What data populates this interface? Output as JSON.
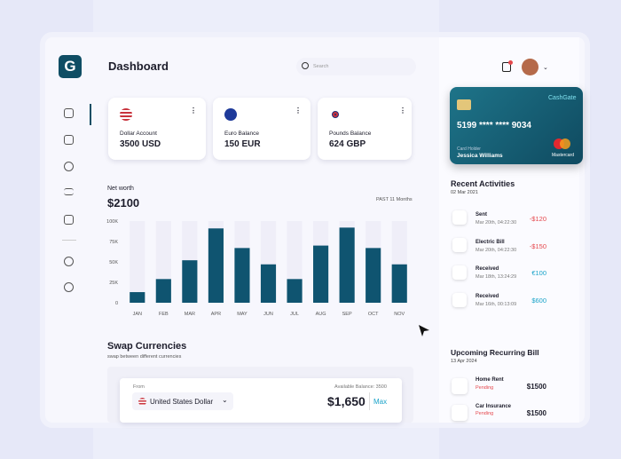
{
  "header": {
    "title": "Dashboard",
    "search_placeholder": "Search"
  },
  "logo": "G",
  "balances": [
    {
      "label": "Dollar Account",
      "amount": "3500 USD"
    },
    {
      "label": "Euro Balance",
      "amount": "150 EUR"
    },
    {
      "label": "Pounds Balance",
      "amount": "624 GBP"
    }
  ],
  "net_worth": {
    "label": "Net worth",
    "amount": "$2100",
    "period": "PAST 11 Months",
    "chart": {
      "type": "bar",
      "categories": [
        "JAN",
        "FEB",
        "MAR",
        "APR",
        "MAY",
        "JUN",
        "JUL",
        "AUG",
        "SEP",
        "OCT",
        "NOV"
      ],
      "values": [
        13000,
        29000,
        52000,
        91000,
        67000,
        47000,
        29000,
        70000,
        92000,
        67000,
        47000
      ],
      "color": "#0f5470",
      "ylim": [
        0,
        100000
      ],
      "yticks": [
        0,
        {
          "value": 25000,
          "label": "25K"
        },
        {
          "value": 50000,
          "label": "50K"
        },
        {
          "value": 75000,
          "label": "75K"
        },
        {
          "value": 100000,
          "label": "100K"
        }
      ]
    }
  },
  "card": {
    "brand": "CashGate",
    "number": "5199  ****  ****  9034",
    "holder_label": "Card Holder",
    "holder": "Jessica Williams",
    "network": "Mastercard"
  },
  "recent": {
    "title": "Recent Activities",
    "date": "02 Mar 2021",
    "items": [
      {
        "name": "Sent",
        "time": "Mar 20th, 04:22:30",
        "amount": "-$120"
      },
      {
        "name": "Electric Bill",
        "time": "Mar 20th, 04:22:30",
        "amount": "-$150"
      },
      {
        "name": "Received",
        "time": "Mar 18th, 13:24:29",
        "amount": "€100"
      },
      {
        "name": "Received",
        "time": "Mar 16th, 00:13:09",
        "amount": "$600"
      }
    ]
  },
  "swap": {
    "title": "Swap Currencies",
    "subtitle": "swap between different currencies",
    "from_label": "From",
    "balance": "Available Balance: 3500",
    "currency": "United States Dollar",
    "amount": "$1,650",
    "max": "Max"
  },
  "bills": {
    "title": "Upcoming Recurring Bill",
    "date": "13 Apr 2024",
    "items": [
      {
        "name": "Home Rent",
        "status": "Pending",
        "amount": "$1500"
      },
      {
        "name": "Car Insurance",
        "status": "Pending",
        "amount": "$1500"
      }
    ]
  }
}
